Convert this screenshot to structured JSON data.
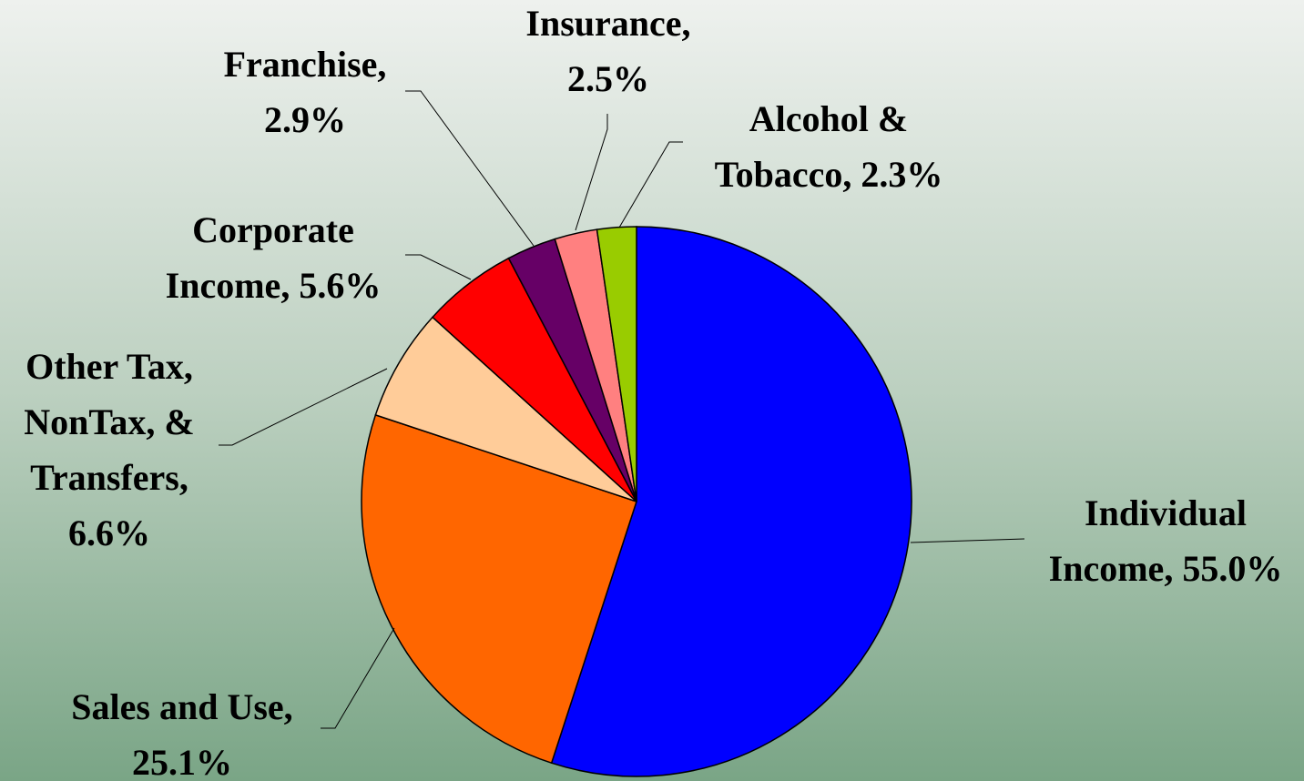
{
  "chart_data": {
    "type": "pie",
    "categories": [
      "Individual Income",
      "Sales and Use",
      "Other Tax, NonTax, & Transfers",
      "Corporate Income",
      "Franchise",
      "Insurance",
      "Alcohol & Tobacco"
    ],
    "values": [
      55.0,
      25.1,
      6.6,
      5.6,
      2.9,
      2.5,
      2.3
    ],
    "value_labels": [
      "Individual\nIncome, 55.0%",
      "Sales and Use,\n25.1%",
      "Other Tax,\nNonTax, &\nTransfers,\n6.6%",
      "Corporate\nIncome, 5.6%",
      "Franchise,\n2.9%",
      "Insurance,\n2.5%",
      "Alcohol &\nTobacco, 2.3%"
    ],
    "colors": [
      "#0000ff",
      "#ff6600",
      "#ffcc99",
      "#ff0000",
      "#660066",
      "#ff8080",
      "#99cc00"
    ],
    "start_angle": 0,
    "direction": "clockwise"
  }
}
